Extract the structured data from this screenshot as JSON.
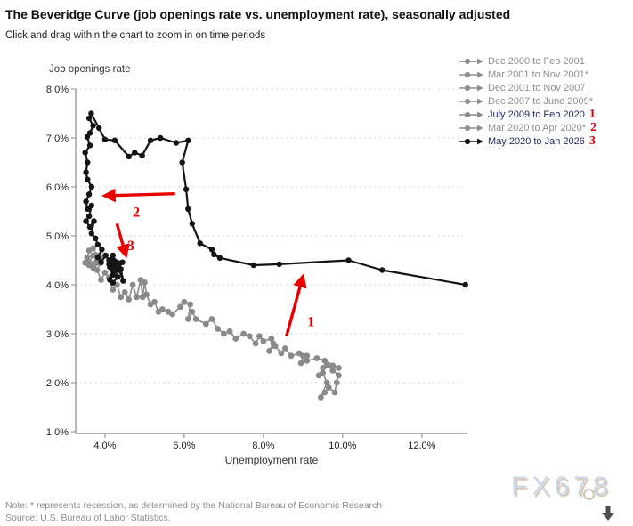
{
  "header": {
    "title": "The Beveridge Curve (job openings rate vs. unemployment rate), seasonally adjusted",
    "subtitle": "Click and drag within the chart to zoom in on time periods"
  },
  "footer": {
    "note": "Note: * represents recession, as determined by the National Bureau of Economic Research",
    "source": "Source: U.S. Bureau of Labor Statistics.",
    "watermark": "FX678"
  },
  "icons": {
    "scroll_down": "down-arrow-icon",
    "circle": "circle-outline-icon"
  },
  "colors": {
    "gray_series": "#8a8a8a",
    "black_series": "#141414",
    "legend_active_text": "#232a66",
    "legend_inactive_text": "#8f8f8f",
    "annotation_red": "#e60000",
    "gridline": "#c9c9c9",
    "axis": "#999999",
    "tick_label": "#222222"
  },
  "chart_data": {
    "type": "scatter",
    "title": "The Beveridge Curve (job openings rate vs. unemployment rate), seasonally adjusted",
    "xlabel": "Unemployment rate",
    "ylabel": "Job openings rate",
    "xlim": [
      3.26,
      13.15
    ],
    "ylim": [
      1.0,
      8.0
    ],
    "grid": "horizontal-dotted",
    "x_ticks": {
      "values": [
        4,
        6,
        8,
        10,
        12
      ],
      "labels": [
        "4.0%",
        "6.0%",
        "8.0%",
        "10.0%",
        "12.0%"
      ]
    },
    "y_ticks": {
      "values": [
        1,
        2,
        3,
        4,
        5,
        6,
        7,
        8
      ],
      "labels": [
        "1.0%",
        "2.0%",
        "3.0%",
        "4.0%",
        "5.0%",
        "6.0%",
        "7.0%",
        "8.0%"
      ]
    },
    "legend": {
      "position": "top-right",
      "items": [
        {
          "label": "Dec 2000 to Feb 2001",
          "marker_color": "#8f8f8f",
          "text_color": "#8f8f8f",
          "visible": false,
          "annotation": ""
        },
        {
          "label": "Mar 2001 to Nov 2001*",
          "marker_color": "#8f8f8f",
          "text_color": "#8f8f8f",
          "visible": false,
          "annotation": ""
        },
        {
          "label": "Dec 2001 to Nov 2007",
          "marker_color": "#8f8f8f",
          "text_color": "#8f8f8f",
          "visible": false,
          "annotation": ""
        },
        {
          "label": "Dec 2007 to June 2009*",
          "marker_color": "#8f8f8f",
          "text_color": "#8f8f8f",
          "visible": false,
          "annotation": ""
        },
        {
          "label": "July 2009 to Feb 2020",
          "marker_color": "#8a8a8a",
          "text_color": "#232a66",
          "visible": true,
          "annotation": "1"
        },
        {
          "label": "Mar 2020 to Apr 2020*",
          "marker_color": "#8f8f8f",
          "text_color": "#8f8f8f",
          "visible": false,
          "annotation": "2"
        },
        {
          "label": "May 2020 to Jan 2026",
          "marker_color": "#141414",
          "text_color": "#232a66",
          "visible": true,
          "annotation": "3"
        }
      ]
    },
    "series": [
      {
        "name": "July 2009 to Feb 2020",
        "color": "#8a8a8a",
        "marker_radius": 3.4,
        "line_width": 1.6,
        "points": [
          [
            9.5,
            2.2
          ],
          [
            9.6,
            2.0
          ],
          [
            9.45,
            1.7
          ],
          [
            9.55,
            1.8
          ],
          [
            9.65,
            1.9
          ],
          [
            9.8,
            1.8
          ],
          [
            9.85,
            2.0
          ],
          [
            9.9,
            2.15
          ],
          [
            9.75,
            2.25
          ],
          [
            9.6,
            2.35
          ],
          [
            9.4,
            2.15
          ],
          [
            9.5,
            2.3
          ],
          [
            9.75,
            2.35
          ],
          [
            9.9,
            2.3
          ],
          [
            9.55,
            2.45
          ],
          [
            9.35,
            2.5
          ],
          [
            9.1,
            2.45
          ],
          [
            9.0,
            2.55
          ],
          [
            8.95,
            2.4
          ],
          [
            9.1,
            2.55
          ],
          [
            8.9,
            2.6
          ],
          [
            8.7,
            2.55
          ],
          [
            8.55,
            2.7
          ],
          [
            8.45,
            2.6
          ],
          [
            8.3,
            2.75
          ],
          [
            8.15,
            2.65
          ],
          [
            8.25,
            2.8
          ],
          [
            8.2,
            2.9
          ],
          [
            8.0,
            2.85
          ],
          [
            7.9,
            2.95
          ],
          [
            7.8,
            2.8
          ],
          [
            7.65,
            2.95
          ],
          [
            7.5,
            3.0
          ],
          [
            7.3,
            2.9
          ],
          [
            7.15,
            3.05
          ],
          [
            7.0,
            3.0
          ],
          [
            6.85,
            3.1
          ],
          [
            6.7,
            3.3
          ],
          [
            6.55,
            3.2
          ],
          [
            6.3,
            3.3
          ],
          [
            6.2,
            3.45
          ],
          [
            6.1,
            3.3
          ],
          [
            6.15,
            3.6
          ],
          [
            6.0,
            3.65
          ],
          [
            5.9,
            3.55
          ],
          [
            5.7,
            3.4
          ],
          [
            5.6,
            3.45
          ],
          [
            5.45,
            3.5
          ],
          [
            5.35,
            3.45
          ],
          [
            5.25,
            3.65
          ],
          [
            5.15,
            3.6
          ],
          [
            5.05,
            3.8
          ],
          [
            5.0,
            4.05
          ],
          [
            4.95,
            3.75
          ],
          [
            4.9,
            4.1
          ],
          [
            4.8,
            3.75
          ],
          [
            4.7,
            4.0
          ],
          [
            4.6,
            3.7
          ],
          [
            4.5,
            3.85
          ],
          [
            4.4,
            3.75
          ],
          [
            4.3,
            4.0
          ],
          [
            4.2,
            3.9
          ],
          [
            4.1,
            4.15
          ],
          [
            4.0,
            4.25
          ],
          [
            3.9,
            4.1
          ],
          [
            3.8,
            4.3
          ],
          [
            3.9,
            4.45
          ],
          [
            3.7,
            4.35
          ],
          [
            3.8,
            4.5
          ],
          [
            3.6,
            4.45
          ],
          [
            3.7,
            4.6
          ],
          [
            3.55,
            4.55
          ],
          [
            3.6,
            4.7
          ],
          [
            3.7,
            4.75
          ],
          [
            3.8,
            4.6
          ],
          [
            3.9,
            4.55
          ],
          [
            4.0,
            4.6
          ],
          [
            3.8,
            4.45
          ],
          [
            3.6,
            4.4
          ],
          [
            3.5,
            4.45
          ]
        ]
      },
      {
        "name": "May 2020 to Jan 2026",
        "color": "#141414",
        "marker_radius": 3.2,
        "line_width": 2.2,
        "points": [
          [
            13.1,
            4.0
          ],
          [
            11.0,
            4.3
          ],
          [
            10.15,
            4.5
          ],
          [
            8.4,
            4.42
          ],
          [
            7.75,
            4.4
          ],
          [
            6.9,
            4.55
          ],
          [
            6.75,
            4.62
          ],
          [
            6.7,
            4.72
          ],
          [
            6.4,
            4.85
          ],
          [
            6.2,
            5.25
          ],
          [
            6.1,
            5.55
          ],
          [
            6.05,
            5.95
          ],
          [
            5.95,
            6.5
          ],
          [
            6.1,
            6.95
          ],
          [
            5.8,
            6.9
          ],
          [
            5.4,
            7.0
          ],
          [
            5.15,
            6.95
          ],
          [
            4.94,
            6.64
          ],
          [
            4.75,
            6.7
          ],
          [
            4.6,
            6.62
          ],
          [
            4.25,
            6.95
          ],
          [
            4.0,
            6.97
          ],
          [
            3.85,
            7.2
          ],
          [
            3.65,
            7.5
          ],
          [
            3.6,
            7.4
          ],
          [
            3.7,
            7.25
          ],
          [
            3.62,
            7.1
          ],
          [
            3.55,
            7.02
          ],
          [
            3.62,
            6.85
          ],
          [
            3.5,
            6.7
          ],
          [
            3.56,
            6.5
          ],
          [
            3.52,
            6.3
          ],
          [
            3.56,
            6.15
          ],
          [
            3.66,
            6.0
          ],
          [
            3.6,
            5.85
          ],
          [
            3.52,
            5.7
          ],
          [
            3.56,
            5.55
          ],
          [
            3.66,
            5.62
          ],
          [
            3.6,
            5.4
          ],
          [
            3.52,
            5.3
          ],
          [
            3.62,
            5.18
          ],
          [
            3.72,
            5.3
          ],
          [
            3.66,
            5.05
          ],
          [
            3.76,
            4.95
          ],
          [
            3.82,
            4.82
          ],
          [
            3.92,
            4.72
          ],
          [
            3.82,
            4.56
          ],
          [
            3.9,
            4.46
          ],
          [
            4.02,
            4.6
          ],
          [
            4.1,
            4.5
          ],
          [
            4.2,
            4.6
          ],
          [
            4.1,
            4.42
          ],
          [
            4.22,
            4.46
          ],
          [
            4.3,
            4.36
          ],
          [
            4.2,
            4.3
          ],
          [
            4.12,
            4.36
          ],
          [
            4.2,
            4.2
          ],
          [
            4.12,
            4.1
          ],
          [
            4.2,
            4.04
          ],
          [
            4.32,
            4.16
          ],
          [
            4.26,
            4.3
          ],
          [
            4.16,
            4.4
          ],
          [
            4.22,
            4.5
          ],
          [
            4.3,
            4.46
          ],
          [
            4.26,
            4.36
          ],
          [
            4.36,
            4.42
          ],
          [
            4.44,
            4.46
          ],
          [
            4.32,
            4.4
          ],
          [
            4.22,
            4.42
          ],
          [
            4.28,
            4.46
          ],
          [
            4.36,
            4.3
          ],
          [
            4.46,
            4.08
          ],
          [
            4.4,
            4.32
          ],
          [
            4.36,
            4.44
          ]
        ]
      }
    ],
    "annotations": {
      "color": "#e60000",
      "arrows": [
        {
          "id": "1",
          "from": [
            8.58,
            2.95
          ],
          "to": [
            8.99,
            4.15
          ],
          "label": "1",
          "label_at": [
            9.2,
            3.25
          ]
        },
        {
          "id": "2",
          "from": [
            5.77,
            5.86
          ],
          "to": [
            4.02,
            5.82
          ],
          "label": "2",
          "label_at": [
            4.79,
            5.48
          ]
        },
        {
          "id": "3",
          "from": [
            4.3,
            5.25
          ],
          "to": [
            4.52,
            4.62
          ],
          "label": "3",
          "label_at": [
            4.65,
            4.8
          ]
        }
      ]
    }
  }
}
